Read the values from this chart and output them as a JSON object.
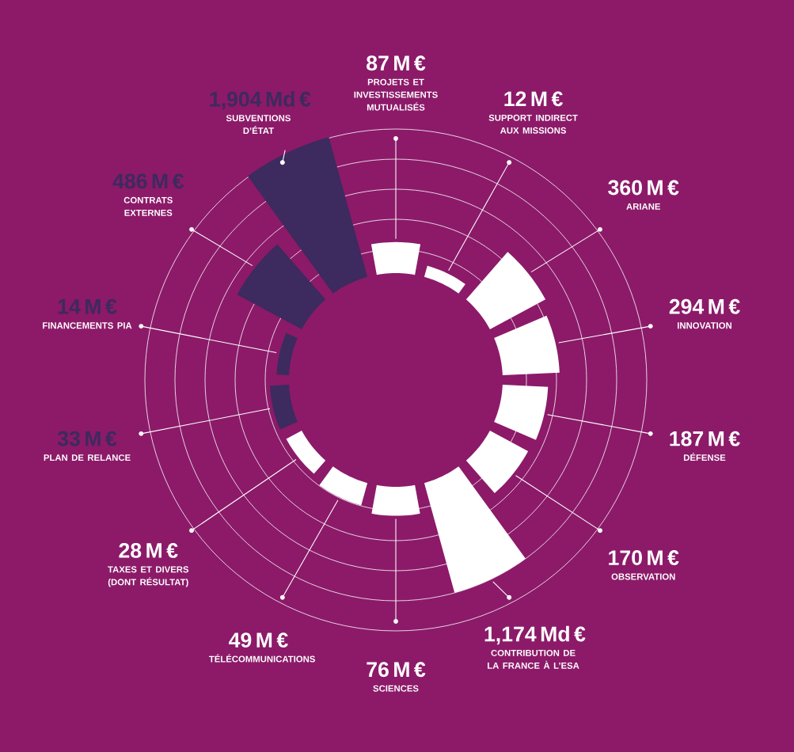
{
  "chart_data": {
    "type": "other",
    "categories": [
      "PROJETS ET INVESTISSEMENTS MUTUALISÉS",
      "SUPPORT INDIRECT AUX MISSIONS",
      "ARIANE",
      "INNOVATION",
      "DÉFENSE",
      "OBSERVATION",
      "CONTRIBUTION DE LA FRANCE À L’ESA",
      "SCIENCES",
      "TÉLÉCOMMUNICATIONS",
      "TAXES ET DIVERS (DONT RÉSULTAT)",
      "PLAN DE RELANCE",
      "FINANCEMENTS PIA",
      "CONTRATS EXTERNES",
      "SUBVENTIONS D’ÉTAT"
    ],
    "values": [
      87,
      12,
      360,
      294,
      187,
      170,
      1174,
      76,
      49,
      28,
      33,
      14,
      486,
      1904
    ],
    "value_labels": [
      "87 M €",
      "12 M €",
      "360 M €",
      "294 M €",
      "187 M €",
      "170 M €",
      "1,174 Md €",
      "76 M €",
      "49 M €",
      "28 M €",
      "33 M €",
      "14 M €",
      "486 M €",
      "1,904 Md €"
    ],
    "colors": [
      "#ffffff",
      "#ffffff",
      "#ffffff",
      "#ffffff",
      "#ffffff",
      "#ffffff",
      "#ffffff",
      "#ffffff",
      "#ffffff",
      "#ffffff",
      "#3d2a5e",
      "#3d2a5e",
      "#3d2a5e",
      "#3d2a5e"
    ]
  }
}
